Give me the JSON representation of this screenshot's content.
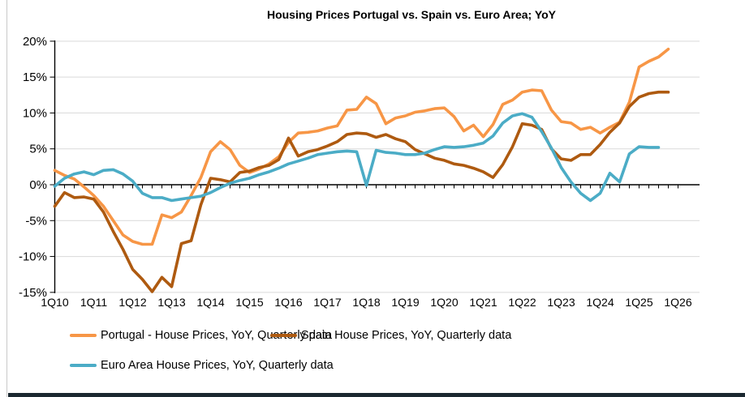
{
  "page": {
    "background": "#ffffff"
  },
  "decorations": {
    "left_rule_color": "#c9c9c9",
    "bottom_bar_color": "#1b2830"
  },
  "chart_data": {
    "type": "line",
    "title": "Housing Prices Portugal vs. Spain vs. Euro Area; YoY",
    "xlabel": "",
    "ylabel": "",
    "ylim": [
      -15,
      20
    ],
    "ytick_step": 5,
    "grid": "horizontal",
    "gridline_color": "#d9d9d9",
    "axis_color": "#000000",
    "legend_position": "bottom-left",
    "y_tick_labels": [
      "20%",
      "15%",
      "10%",
      "5%",
      "0%",
      "-5%",
      "-10%",
      "-15%"
    ],
    "x_tick_labels": [
      "1Q10",
      "1Q11",
      "1Q12",
      "1Q13",
      "1Q14",
      "1Q15",
      "1Q16",
      "1Q17",
      "1Q18",
      "1Q19",
      "1Q20",
      "1Q21",
      "1Q22",
      "1Q23",
      "1Q24",
      "1Q25",
      "1Q26"
    ],
    "categories": [
      "1Q10",
      "2Q10",
      "3Q10",
      "4Q10",
      "1Q11",
      "2Q11",
      "3Q11",
      "4Q11",
      "1Q12",
      "2Q12",
      "3Q12",
      "4Q12",
      "1Q13",
      "2Q13",
      "3Q13",
      "4Q13",
      "1Q14",
      "2Q14",
      "3Q14",
      "4Q14",
      "1Q15",
      "2Q15",
      "3Q15",
      "4Q15",
      "1Q16",
      "2Q16",
      "3Q16",
      "4Q16",
      "1Q17",
      "2Q17",
      "3Q17",
      "4Q17",
      "1Q18",
      "2Q18",
      "3Q18",
      "4Q18",
      "1Q19",
      "2Q19",
      "3Q19",
      "4Q19",
      "1Q20",
      "2Q20",
      "3Q20",
      "4Q20",
      "1Q21",
      "2Q21",
      "3Q21",
      "4Q21",
      "1Q22",
      "2Q22",
      "3Q22",
      "4Q22",
      "1Q23",
      "2Q23",
      "3Q23",
      "4Q23",
      "1Q24",
      "2Q24",
      "3Q24",
      "4Q24",
      "1Q25",
      "2Q25",
      "3Q25",
      "4Q25"
    ],
    "series": [
      {
        "name": "Portugal - House Prices, YoY, Quarterly data",
        "color": "#F79646",
        "values": [
          2.0,
          1.3,
          0.8,
          -0.3,
          -1.5,
          -3.0,
          -5.0,
          -7.0,
          -7.9,
          -8.3,
          -8.3,
          -4.2,
          -4.6,
          -3.8,
          -1.5,
          1.0,
          4.6,
          6.0,
          4.9,
          2.7,
          1.7,
          2.2,
          2.9,
          3.9,
          5.9,
          7.2,
          7.3,
          7.5,
          7.9,
          8.2,
          10.4,
          10.5,
          12.2,
          11.3,
          8.5,
          9.3,
          9.6,
          10.1,
          10.3,
          10.6,
          10.7,
          9.5,
          7.5,
          8.3,
          6.7,
          8.4,
          11.2,
          11.8,
          12.9,
          13.2,
          13.1,
          10.4,
          8.8,
          8.6,
          7.7,
          8.0,
          7.2,
          8.0,
          8.7,
          11.5,
          16.4,
          17.2,
          17.8,
          18.9
        ]
      },
      {
        "name": "Spain House Prices, YoY, Quarterly data",
        "color": "#AE5A10",
        "values": [
          -3.0,
          -1.1,
          -1.8,
          -1.7,
          -2.0,
          -3.8,
          -6.5,
          -9.0,
          -11.8,
          -13.2,
          -14.9,
          -12.9,
          -14.2,
          -8.2,
          -7.8,
          -2.8,
          0.9,
          0.7,
          0.4,
          1.7,
          1.9,
          2.4,
          2.7,
          3.5,
          6.5,
          4.0,
          4.6,
          4.9,
          5.4,
          6.0,
          7.0,
          7.2,
          7.1,
          6.6,
          7.0,
          6.4,
          6.0,
          4.9,
          4.3,
          3.7,
          3.4,
          2.9,
          2.7,
          2.3,
          1.8,
          1.0,
          2.8,
          5.3,
          8.5,
          8.3,
          7.7,
          5.0,
          3.6,
          3.4,
          4.2,
          4.2,
          5.6,
          7.3,
          8.6,
          10.9,
          12.2,
          12.7,
          12.9,
          12.9
        ]
      },
      {
        "name": "Euro Area House Prices, YoY, Quarterly data",
        "color": "#4BACC6",
        "values": [
          -0.2,
          0.9,
          1.5,
          1.8,
          1.4,
          2.0,
          2.1,
          1.5,
          0.5,
          -1.2,
          -1.8,
          -1.8,
          -2.2,
          -2.0,
          -1.8,
          -1.6,
          -1.1,
          -0.4,
          0.2,
          0.6,
          0.9,
          1.4,
          1.8,
          2.3,
          2.9,
          3.3,
          3.7,
          4.2,
          4.4,
          4.6,
          4.7,
          4.6,
          -0.1,
          4.8,
          4.5,
          4.4,
          4.2,
          4.2,
          4.4,
          4.9,
          5.3,
          5.2,
          5.3,
          5.5,
          5.8,
          6.8,
          8.6,
          9.6,
          9.9,
          9.4,
          7.4,
          5.1,
          2.4,
          0.4,
          -1.2,
          -2.2,
          -1.2,
          1.6,
          0.4,
          4.3,
          5.3,
          5.2,
          5.2,
          null
        ]
      }
    ]
  }
}
